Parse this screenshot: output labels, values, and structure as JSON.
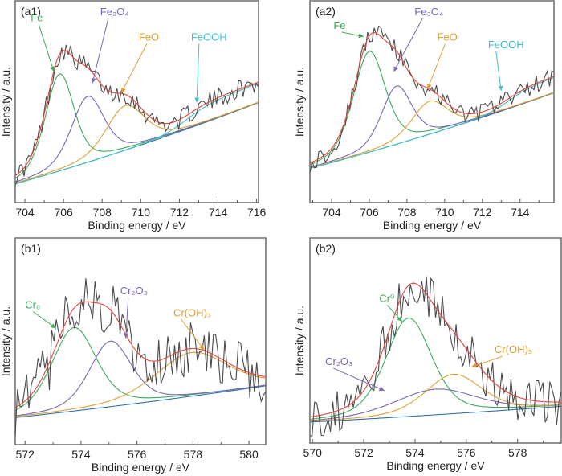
{
  "chart_data": [
    {
      "id": "a1",
      "type": "line",
      "panel_label": "(a1)",
      "xlabel": "Binding energy / eV",
      "ylabel": "Intensity / a.u.",
      "xlim": [
        703.5,
        716.1
      ],
      "ylim": [
        0,
        1
      ],
      "xticks": [
        704,
        706,
        708,
        710,
        712,
        714,
        716
      ],
      "background": {
        "x0": 703.5,
        "y0": 0.08,
        "x1": 716.1,
        "y1": 0.5
      },
      "components": [
        {
          "name": "Fe",
          "center": 705.8,
          "height": 0.5,
          "width": 0.75,
          "color": "#3daa5a"
        },
        {
          "name": "Fe3O4",
          "label": "Fe₃O₄",
          "center": 707.25,
          "height": 0.34,
          "width": 0.85,
          "color": "#7b64b4"
        },
        {
          "name": "FeO",
          "center": 709.2,
          "height": 0.23,
          "width": 1.0,
          "color": "#e0a030"
        },
        {
          "name": "FeOOH",
          "center": 713.6,
          "height": 0.1,
          "width": 1.4,
          "color": "#3fc0c8",
          "step": true
        }
      ],
      "envelope_color": "#e0453a",
      "raw_noise": 0.05,
      "annotations": [
        {
          "text": "Fe",
          "color": "#3daa5a",
          "at": [
            704.3,
            0.92
          ],
          "arrow_to": [
            705.5,
            0.66
          ]
        },
        {
          "text": "Fe₃O₄",
          "color": "#7b64b4",
          "at": [
            707.9,
            0.95
          ],
          "arrow_to": [
            707.5,
            0.6
          ]
        },
        {
          "text": "FeO",
          "color": "#e0a030",
          "at": [
            709.9,
            0.82
          ],
          "arrow_to": [
            709.0,
            0.55
          ]
        },
        {
          "text": "FeOOH",
          "color": "#3fc0c8",
          "at": [
            712.6,
            0.82
          ],
          "arrow_to": [
            712.9,
            0.5
          ]
        }
      ]
    },
    {
      "id": "a2",
      "type": "line",
      "panel_label": "(a2)",
      "xlabel": "Binding energy / eV",
      "ylabel": "Intensity / a.u.",
      "xlim": [
        702.85,
        715.8
      ],
      "ylim": [
        0,
        1
      ],
      "xticks": [
        704,
        706,
        708,
        710,
        712,
        714
      ],
      "background": {
        "x0": 702.85,
        "y0": 0.16,
        "x1": 715.8,
        "y1": 0.55
      },
      "components": [
        {
          "name": "Fe",
          "center": 706.0,
          "height": 0.52,
          "width": 0.85,
          "color": "#3daa5a"
        },
        {
          "name": "Fe3O4",
          "label": "Fe₃O₄",
          "center": 707.45,
          "height": 0.3,
          "width": 0.8,
          "color": "#7b64b4"
        },
        {
          "name": "FeO",
          "center": 709.2,
          "height": 0.17,
          "width": 0.95,
          "color": "#e0a030"
        },
        {
          "name": "FeOOH",
          "center": 714.6,
          "height": 0.08,
          "width": 1.3,
          "color": "#3fc0c8",
          "step": true
        }
      ],
      "envelope_color": "#e0453a",
      "raw_noise": 0.05,
      "annotations": [
        {
          "text": "Fe",
          "color": "#3daa5a",
          "at": [
            704.1,
            0.88
          ],
          "arrow_to": [
            705.7,
            0.84
          ]
        },
        {
          "text": "Fe₃O₄",
          "color": "#7b64b4",
          "at": [
            708.4,
            0.95
          ],
          "arrow_to": [
            707.3,
            0.66
          ]
        },
        {
          "text": "FeO",
          "color": "#e0a030",
          "at": [
            709.6,
            0.82
          ],
          "arrow_to": [
            709.1,
            0.57
          ]
        },
        {
          "text": "FeOOH",
          "color": "#3fc0c8",
          "at": [
            712.3,
            0.78
          ],
          "arrow_to": [
            713.0,
            0.56
          ]
        }
      ]
    },
    {
      "id": "b1",
      "type": "line",
      "panel_label": "(b1)",
      "xlabel": "Binding energy / eV",
      "ylabel": "Intensity / a.u.",
      "xlim": [
        571.65,
        580.6
      ],
      "ylim": [
        0,
        1
      ],
      "xticks": [
        572,
        574,
        576,
        578,
        580
      ],
      "background": {
        "x0": 571.65,
        "y0": 0.12,
        "x1": 580.6,
        "y1": 0.28
      },
      "components": [
        {
          "name": "Cr0",
          "label": "Cr₀",
          "center": 573.75,
          "height": 0.42,
          "width": 0.8,
          "color": "#3daa5a"
        },
        {
          "name": "Cr2O3",
          "label": "Cr₂O₃",
          "center": 575.05,
          "height": 0.33,
          "width": 0.75,
          "color": "#7b64b4"
        },
        {
          "name": "Cr(OH)3",
          "label": "Cr(OH)₃",
          "center": 577.95,
          "height": 0.22,
          "width": 1.3,
          "color": "#e0a030"
        }
      ],
      "envelope_color": "#e0453a",
      "raw_noise": 0.14,
      "annotations": [
        {
          "text": "Cr₀",
          "color": "#3daa5a",
          "at": [
            572.0,
            0.67
          ],
          "arrow_to": [
            573.1,
            0.57
          ]
        },
        {
          "text": "Cr₂O₃",
          "color": "#7b64b4",
          "at": [
            575.4,
            0.74
          ],
          "arrow_to": [
            575.6,
            0.52
          ]
        },
        {
          "text": "Cr(OH)₃",
          "color": "#e0a030",
          "at": [
            577.3,
            0.63
          ],
          "arrow_to": [
            578.4,
            0.46
          ]
        }
      ]
    },
    {
      "id": "b2",
      "type": "line",
      "panel_label": "(b2)",
      "xlabel": "Binding energy / eV",
      "ylabel": "Intensity / a.u.",
      "xlim": [
        569.9,
        579.7
      ],
      "ylim": [
        0,
        1
      ],
      "xticks": [
        570,
        572,
        574,
        576,
        578
      ],
      "background": {
        "x0": 569.9,
        "y0": 0.09,
        "x1": 579.7,
        "y1": 0.17
      },
      "components": [
        {
          "name": "Cr0",
          "label": "Cr⁰",
          "center": 573.75,
          "height": 0.5,
          "width": 0.9,
          "color": "#3daa5a"
        },
        {
          "name": "Cr2O3",
          "label": "Cr₂O₃",
          "center": 574.8,
          "height": 0.13,
          "width": 1.6,
          "color": "#7b64b4"
        },
        {
          "name": "Cr(OH)3",
          "label": "Cr(OH)₃",
          "center": 575.5,
          "height": 0.2,
          "width": 1.1,
          "color": "#e0a030"
        }
      ],
      "envelope_color": "#e0453a",
      "raw_noise": 0.12,
      "annotations": [
        {
          "text": "Cr⁰",
          "color": "#3daa5a",
          "at": [
            572.6,
            0.7
          ],
          "arrow_to": [
            573.5,
            0.6
          ]
        },
        {
          "text": "Cr₂O₃",
          "color": "#7b64b4",
          "at": [
            570.5,
            0.38
          ],
          "arrow_to": [
            572.8,
            0.25
          ]
        },
        {
          "text": "Cr(OH)₃",
          "color": "#e0a030",
          "at": [
            577.1,
            0.44
          ],
          "arrow_to": [
            576.2,
            0.37
          ]
        }
      ]
    }
  ]
}
